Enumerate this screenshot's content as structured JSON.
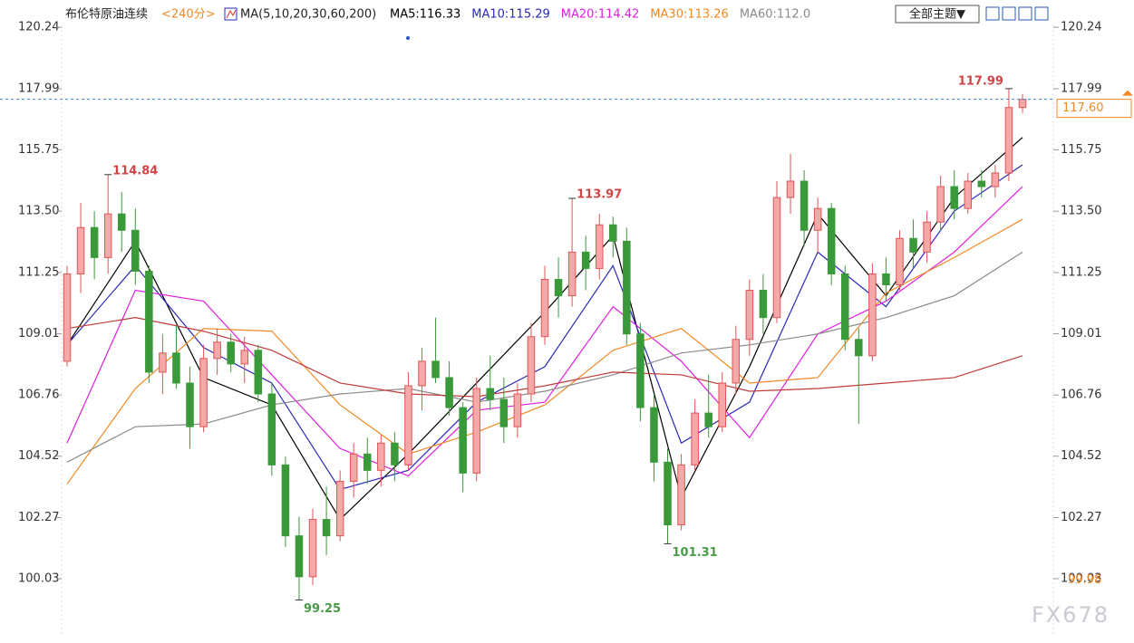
{
  "chart_data": {
    "type": "candlestick",
    "title": "布伦特原油连续",
    "subtitle": "<240分>",
    "indicator": "MA(5,10,20,30,60,200)",
    "legend": [
      "MA5:116.33",
      "MA10:115.29",
      "MA20:114.42",
      "MA30:113.26",
      "MA60:112.0"
    ],
    "theme_button": "全部主题▼",
    "watermark": "FX678",
    "up_color": "#e05555",
    "down_color": "#3a9a3a",
    "ylim": [
      98.17,
      121.24
    ],
    "yticks": [
      120.24,
      117.99,
      115.75,
      {
        "value": 113.5,
        "label": "113.50"
      },
      111.25,
      109.01,
      106.76,
      104.52,
      102.27,
      100.03
    ],
    "last_price": {
      "value": 117.6,
      "label": "117.60"
    },
    "low_line_label": 99.98,
    "annotations": [
      114.84,
      113.97,
      117.99,
      99.25,
      101.31
    ],
    "candles": [
      [
        108.0,
        111.5,
        107.8,
        111.2
      ],
      [
        111.2,
        113.8,
        110.5,
        112.9
      ],
      [
        112.9,
        113.5,
        111.0,
        111.8
      ],
      [
        111.8,
        114.84,
        111.2,
        113.4
      ],
      [
        113.4,
        114.2,
        112.0,
        112.8
      ],
      [
        112.8,
        113.6,
        110.8,
        111.3
      ],
      [
        111.3,
        111.5,
        107.2,
        107.6
      ],
      [
        107.6,
        109.0,
        106.8,
        108.3
      ],
      [
        108.3,
        109.3,
        107.0,
        107.2
      ],
      [
        107.2,
        107.8,
        104.8,
        105.6
      ],
      [
        105.6,
        108.6,
        105.4,
        108.1
      ],
      [
        108.1,
        109.2,
        107.5,
        108.7
      ],
      [
        108.7,
        109.0,
        107.6,
        107.9
      ],
      [
        107.9,
        108.9,
        107.2,
        108.4
      ],
      [
        108.4,
        108.6,
        106.5,
        106.8
      ],
      [
        106.8,
        107.2,
        103.8,
        104.2
      ],
      [
        104.2,
        104.5,
        101.2,
        101.6
      ],
      [
        101.6,
        102.3,
        99.25,
        100.1
      ],
      [
        100.1,
        102.6,
        99.8,
        102.2
      ],
      [
        102.2,
        103.4,
        100.9,
        101.6
      ],
      [
        101.6,
        104.0,
        101.4,
        103.6
      ],
      [
        103.6,
        105.0,
        103.0,
        104.6
      ],
      [
        104.6,
        105.2,
        103.5,
        104.0
      ],
      [
        104.0,
        105.3,
        103.4,
        105.0
      ],
      [
        105.0,
        105.4,
        103.6,
        104.2
      ],
      [
        104.2,
        107.6,
        104.0,
        107.1
      ],
      [
        107.1,
        108.5,
        106.2,
        108.0
      ],
      [
        108.0,
        109.6,
        107.2,
        107.4
      ],
      [
        107.4,
        108.0,
        106.0,
        106.3
      ],
      [
        106.3,
        106.5,
        103.2,
        103.9
      ],
      [
        103.9,
        107.4,
        103.6,
        107.0
      ],
      [
        107.0,
        108.2,
        106.2,
        106.6
      ],
      [
        106.6,
        107.4,
        105.0,
        105.6
      ],
      [
        105.6,
        107.2,
        105.2,
        106.8
      ],
      [
        106.8,
        109.4,
        106.5,
        108.9
      ],
      [
        108.9,
        111.5,
        108.6,
        111.0
      ],
      [
        111.0,
        111.8,
        109.6,
        110.4
      ],
      [
        110.4,
        113.97,
        110.0,
        112.0
      ],
      [
        112.0,
        112.6,
        110.6,
        111.4
      ],
      [
        111.4,
        113.4,
        111.0,
        113.0
      ],
      [
        113.0,
        113.3,
        111.8,
        112.4
      ],
      [
        112.4,
        112.9,
        108.6,
        109.0
      ],
      [
        109.0,
        109.4,
        105.8,
        106.3
      ],
      [
        106.3,
        106.8,
        103.6,
        104.3
      ],
      [
        104.3,
        104.8,
        101.31,
        102.0
      ],
      [
        102.0,
        104.6,
        101.8,
        104.2
      ],
      [
        104.2,
        106.6,
        104.0,
        106.1
      ],
      [
        106.1,
        107.5,
        105.2,
        105.6
      ],
      [
        105.6,
        107.6,
        105.4,
        107.2
      ],
      [
        107.2,
        109.3,
        106.8,
        108.8
      ],
      [
        108.8,
        111.0,
        108.2,
        110.6
      ],
      [
        110.6,
        111.2,
        109.0,
        109.6
      ],
      [
        109.6,
        114.6,
        109.4,
        114.0
      ],
      [
        114.0,
        115.6,
        113.4,
        114.6
      ],
      [
        114.6,
        115.0,
        112.2,
        112.8
      ],
      [
        112.8,
        114.0,
        112.0,
        113.6
      ],
      [
        113.6,
        113.8,
        110.8,
        111.2
      ],
      [
        111.2,
        111.5,
        108.4,
        108.8
      ],
      [
        108.8,
        109.2,
        105.7,
        108.2
      ],
      [
        108.2,
        111.6,
        108.0,
        111.2
      ],
      [
        111.2,
        111.8,
        110.2,
        110.8
      ],
      [
        110.8,
        112.8,
        110.6,
        112.5
      ],
      [
        112.5,
        113.2,
        111.4,
        112.0
      ],
      [
        112.0,
        113.5,
        111.6,
        113.1
      ],
      [
        113.1,
        114.8,
        112.8,
        114.4
      ],
      [
        114.4,
        115.0,
        113.2,
        113.6
      ],
      [
        113.6,
        114.9,
        113.4,
        114.6
      ],
      [
        114.6,
        115.0,
        114.0,
        114.4
      ],
      [
        114.4,
        115.2,
        114.0,
        114.9
      ],
      [
        114.9,
        117.99,
        114.6,
        117.3
      ],
      [
        117.3,
        117.8,
        117.1,
        117.6
      ]
    ],
    "x": [
      0,
      5,
      10,
      15,
      20,
      25,
      30,
      35,
      40,
      45,
      50,
      55,
      60,
      65,
      70
    ],
    "series": [
      {
        "color": "#000000",
        "values": [
          108.6,
          112.4,
          107.4,
          106.4,
          102.2,
          104.6,
          107.2,
          109.8,
          112.6,
          103.0,
          107.8,
          113.4,
          110.4,
          114.0,
          116.2
        ]
      },
      {
        "color": "#2a2ab8",
        "values": [
          108.6,
          111.5,
          108.5,
          107.2,
          103.3,
          104.0,
          106.5,
          107.8,
          111.5,
          105.0,
          106.5,
          112.0,
          110.0,
          113.5,
          115.2
        ]
      },
      {
        "color": "#e020e0",
        "values": [
          105.0,
          110.6,
          110.2,
          107.5,
          104.8,
          103.8,
          106.2,
          106.5,
          110.0,
          108.0,
          105.2,
          109.0,
          110.2,
          112.0,
          114.4
        ]
      },
      {
        "color": "#f08a24",
        "values": [
          103.5,
          107.0,
          109.2,
          109.1,
          106.4,
          104.6,
          105.4,
          106.4,
          108.4,
          109.2,
          107.2,
          107.4,
          110.5,
          111.8,
          113.2
        ]
      },
      {
        "color": "#8a8a8a",
        "values": [
          104.3,
          105.6,
          105.7,
          106.4,
          106.8,
          107.0,
          106.5,
          106.9,
          107.5,
          108.3,
          108.6,
          109.0,
          109.6,
          110.4,
          112.0
        ]
      },
      {
        "color": "#c03a3a",
        "values": [
          109.2,
          109.6,
          109.1,
          108.4,
          107.2,
          106.8,
          106.7,
          107.1,
          107.6,
          107.5,
          106.9,
          107.0,
          107.2,
          107.4,
          108.2
        ]
      }
    ]
  }
}
